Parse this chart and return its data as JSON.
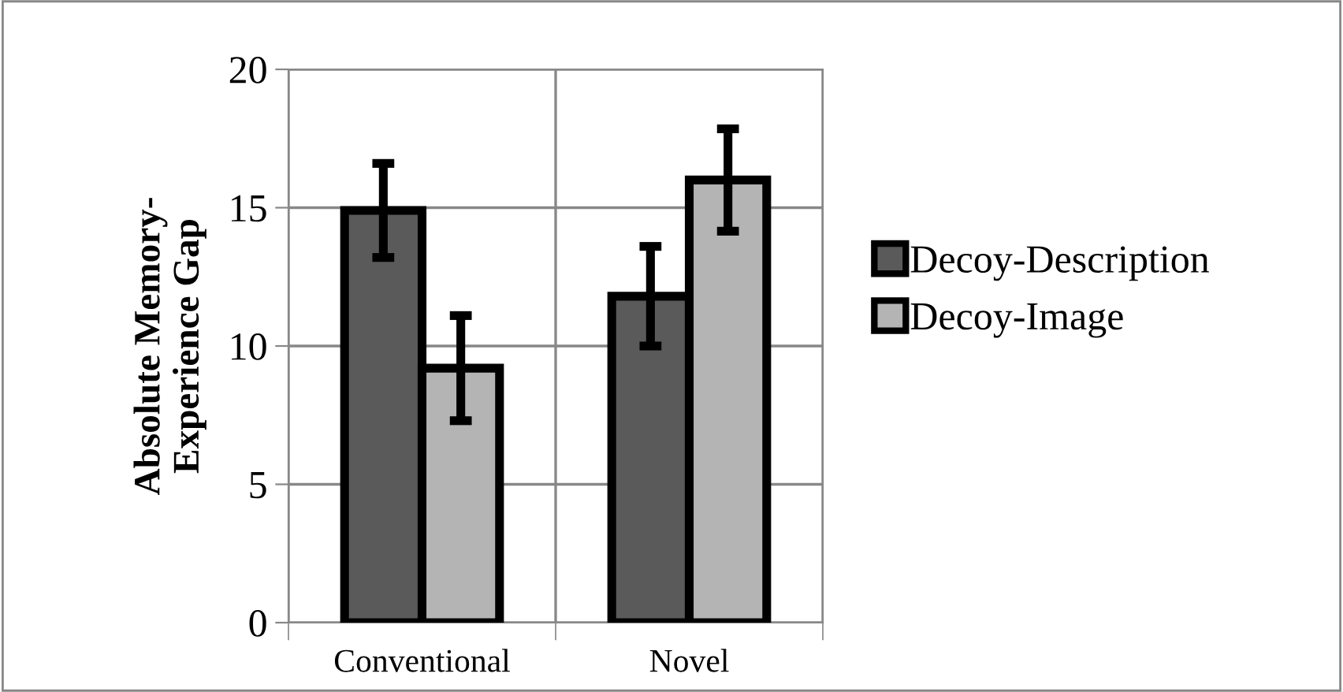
{
  "chart_data": {
    "type": "bar",
    "ylabel": "Absolute Memory-\nExperience Gap",
    "categories": [
      "Conventional",
      "Novel"
    ],
    "series": [
      {
        "name": "Decoy-Description",
        "color": "#5a5a5a",
        "values": [
          14.9,
          11.8
        ],
        "errors": [
          1.7,
          1.8
        ]
      },
      {
        "name": "Decoy-Image",
        "color": "#b4b4b4",
        "values": [
          9.2,
          16.0
        ],
        "errors": [
          1.9,
          1.85
        ]
      }
    ],
    "ylim": [
      0,
      20
    ],
    "yticks": [
      0,
      5,
      10,
      15,
      20
    ],
    "grid": true,
    "legend": "right"
  }
}
